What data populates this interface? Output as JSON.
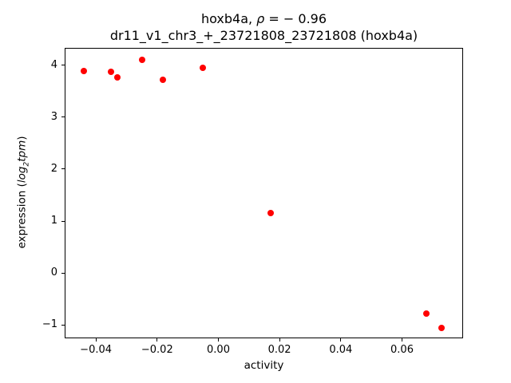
{
  "figure": {
    "title_line1": {
      "prefix": "hoxb4a, ",
      "rho": "ρ",
      "rest": " = − 0.96"
    },
    "title_line2": "dr11_v1_chr3_+_23721808_23721808 (hoxb4a)",
    "xlabel": "activity",
    "ylabel": {
      "prefix": "expression (",
      "math_log": "log",
      "math_sub": "2",
      "math_tpm": "tpm",
      "suffix": ")"
    }
  },
  "chart_data": {
    "type": "scatter",
    "title": "hoxb4a, ρ = −0.96",
    "subtitle": "dr11_v1_chr3_+_23721808_23721808 (hoxb4a)",
    "xlabel": "activity",
    "ylabel": "expression (log2 tpm)",
    "marker_color": "#ff0000",
    "marker_size_px": 8,
    "grid": false,
    "legend_position": "none",
    "xlim": [
      -0.0502,
      0.0797
    ],
    "ylim": [
      -1.24,
      4.33
    ],
    "x_ticks": {
      "values": [
        -0.04,
        -0.02,
        0.0,
        0.02,
        0.04,
        0.06
      ],
      "labels": [
        "−0.04",
        "−0.02",
        "0.00",
        "0.02",
        "0.04",
        "0.06"
      ]
    },
    "y_ticks": {
      "values": [
        -1,
        0,
        1,
        2,
        3,
        4
      ],
      "labels": [
        "−1",
        "0",
        "1",
        "2",
        "3",
        "4"
      ]
    },
    "points": [
      [
        -0.044,
        3.89
      ],
      [
        -0.035,
        3.87
      ],
      [
        -0.033,
        3.77
      ],
      [
        -0.025,
        4.1
      ],
      [
        -0.018,
        3.71
      ],
      [
        -0.005,
        3.95
      ],
      [
        0.017,
        1.16
      ],
      [
        0.068,
        -0.78
      ],
      [
        0.073,
        -1.05
      ]
    ]
  }
}
